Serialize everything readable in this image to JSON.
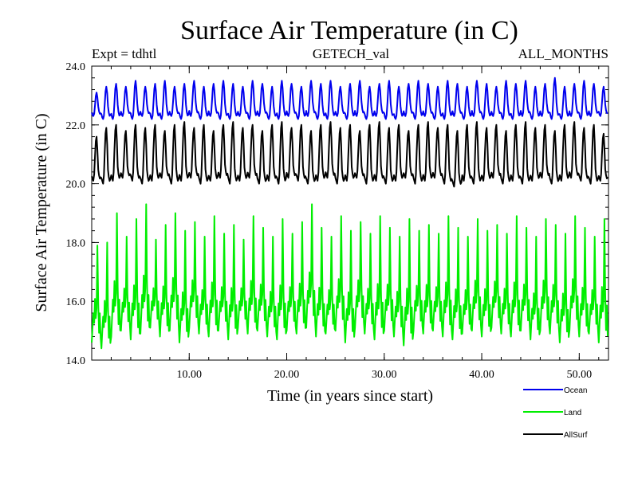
{
  "header": {
    "title": "Surface Air Temperature (in C)",
    "expt": "Expt = tdhtl",
    "dataset": "GETECH_val",
    "months": "ALL_MONTHS"
  },
  "chart_data": {
    "type": "line",
    "title": "Surface Air Temperature (in C)",
    "xlabel": "Time (in years since start)",
    "ylabel": "Surface Air Temperature (in C)",
    "xlim": [
      0,
      53
    ],
    "ylim": [
      14.0,
      24.0
    ],
    "x_ticks": [
      10,
      20,
      30,
      40,
      50
    ],
    "x_tick_labels": [
      "10.00",
      "20.00",
      "30.00",
      "40.00",
      "50.00"
    ],
    "y_ticks": [
      14,
      16,
      18,
      20,
      22,
      24
    ],
    "y_tick_labels": [
      "14.0",
      "16.0",
      "18.0",
      "20.0",
      "22.0",
      "24.0"
    ],
    "legend_position": "bottom-right",
    "period_years": 1,
    "points_per_year": 12,
    "series": [
      {
        "name": "Ocean",
        "color": "#0000ee",
        "min_values": [
          22.3,
          22.2,
          22.2,
          22.3,
          22.2,
          22.3,
          22.2,
          22.2,
          22.3,
          22.2,
          22.3,
          22.2,
          22.3,
          22.2,
          22.2,
          22.3,
          22.2,
          22.3,
          22.2,
          22.2,
          22.3,
          22.2,
          22.3,
          22.2,
          22.2,
          22.3,
          22.2,
          22.3,
          22.2,
          22.3,
          22.2,
          22.2,
          22.3,
          22.2,
          22.3,
          22.2,
          22.2,
          22.3,
          22.2,
          22.3,
          22.2,
          22.3,
          22.2,
          22.2,
          22.3,
          22.2,
          22.3,
          22.2,
          22.2,
          22.3,
          22.2,
          22.3,
          22.3
        ],
        "max_values": [
          23.1,
          23.3,
          23.4,
          23.3,
          23.5,
          23.3,
          23.4,
          23.5,
          23.3,
          23.4,
          23.5,
          23.3,
          23.4,
          23.5,
          23.4,
          23.3,
          23.5,
          23.4,
          23.3,
          23.5,
          23.4,
          23.3,
          23.5,
          23.4,
          23.5,
          23.3,
          23.4,
          23.5,
          23.3,
          23.4,
          23.5,
          23.3,
          23.4,
          23.5,
          23.4,
          23.3,
          23.5,
          23.4,
          23.3,
          23.5,
          23.4,
          23.3,
          23.5,
          23.4,
          23.5,
          23.3,
          23.4,
          23.6,
          23.3,
          23.4,
          23.5,
          23.4,
          23.3
        ]
      },
      {
        "name": "Land",
        "color": "#00ee00",
        "min_values": [
          14.6,
          14.4,
          14.8,
          15.0,
          14.7,
          14.9,
          15.1,
          14.8,
          15.0,
          14.6,
          15.1,
          14.9,
          14.8,
          15.0,
          14.7,
          15.1,
          14.9,
          15.0,
          14.8,
          14.7,
          15.0,
          14.9,
          15.1,
          14.8,
          14.9,
          15.0,
          14.6,
          15.1,
          14.9,
          14.7,
          15.0,
          14.8,
          14.5,
          15.0,
          14.9,
          15.0,
          14.8,
          14.7,
          14.9,
          15.0,
          14.8,
          15.1,
          14.9,
          14.8,
          15.0,
          14.7,
          15.0,
          14.9,
          14.6,
          15.0,
          14.8,
          14.9,
          14.6
        ],
        "max_values": [
          17.9,
          18.0,
          19.0,
          18.2,
          18.8,
          19.3,
          18.1,
          18.6,
          19.0,
          18.4,
          18.7,
          18.2,
          18.9,
          18.3,
          18.6,
          18.1,
          18.9,
          18.5,
          18.2,
          18.8,
          18.3,
          18.7,
          19.3,
          18.5,
          18.2,
          18.9,
          18.4,
          18.7,
          18.3,
          18.9,
          18.5,
          18.2,
          18.8,
          18.4,
          18.6,
          18.3,
          18.9,
          18.5,
          18.2,
          18.8,
          18.4,
          18.6,
          18.3,
          18.9,
          18.5,
          18.2,
          18.8,
          18.6,
          18.3,
          18.9,
          18.5,
          18.2,
          18.8
        ]
      },
      {
        "name": "AllSurf",
        "color": "#000000",
        "min_values": [
          20.1,
          20.0,
          20.1,
          20.2,
          20.1,
          20.0,
          20.1,
          20.2,
          20.0,
          20.1,
          20.2,
          20.0,
          20.1,
          20.2,
          20.0,
          20.1,
          20.2,
          20.0,
          20.1,
          20.0,
          20.2,
          20.1,
          20.0,
          20.1,
          20.2,
          20.0,
          20.1,
          20.2,
          20.0,
          20.1,
          20.0,
          20.1,
          20.2,
          20.0,
          20.1,
          20.2,
          20.0,
          19.9,
          20.1,
          20.0,
          20.1,
          20.2,
          20.0,
          20.1,
          20.0,
          20.1,
          20.2,
          20.0,
          20.1,
          20.2,
          20.1,
          20.0,
          20.1
        ],
        "max_values": [
          21.6,
          21.9,
          22.0,
          21.8,
          22.0,
          21.9,
          22.0,
          21.8,
          22.0,
          22.1,
          21.9,
          22.0,
          21.8,
          22.0,
          22.1,
          21.9,
          22.0,
          21.8,
          22.0,
          22.1,
          21.9,
          22.0,
          21.8,
          22.0,
          22.1,
          21.9,
          22.0,
          21.8,
          22.0,
          22.1,
          21.9,
          22.0,
          21.8,
          22.0,
          22.1,
          21.9,
          22.0,
          21.8,
          22.0,
          22.1,
          21.9,
          22.0,
          21.8,
          22.0,
          22.1,
          21.9,
          22.0,
          21.8,
          22.0,
          22.1,
          21.9,
          22.0,
          21.7
        ]
      }
    ]
  }
}
